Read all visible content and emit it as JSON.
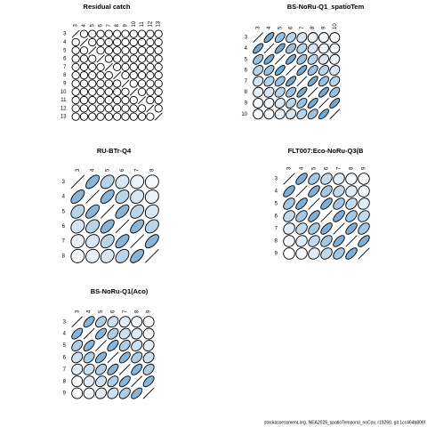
{
  "chart_data": [
    {
      "type": "correlation",
      "title": "Residual catch",
      "color": "#4f94c8",
      "labels": [
        "3",
        "4",
        "5",
        "6",
        "7",
        "8",
        "9",
        "10",
        "11",
        "12",
        "13"
      ],
      "matrix": [
        [
          1,
          0,
          0,
          0,
          0,
          0,
          0,
          0,
          0,
          0,
          0
        ],
        [
          0,
          1,
          0,
          0,
          0,
          0,
          0,
          0,
          0,
          0,
          0
        ],
        [
          0,
          0,
          1,
          0,
          0,
          0,
          0,
          0,
          0,
          0,
          0
        ],
        [
          0,
          0,
          0,
          1,
          0,
          0,
          0,
          0,
          0,
          0,
          0
        ],
        [
          0,
          0,
          0,
          0,
          1,
          0,
          0,
          0,
          0,
          0,
          0
        ],
        [
          0,
          0,
          0,
          0,
          0,
          1,
          0,
          0,
          0,
          0,
          0
        ],
        [
          0,
          0,
          0,
          0,
          0,
          0,
          1,
          0,
          0,
          0,
          0
        ],
        [
          0,
          0,
          0,
          0,
          0,
          0,
          0,
          1,
          0,
          0,
          0
        ],
        [
          0,
          0,
          0,
          0,
          0,
          0,
          0,
          0,
          1,
          0,
          0
        ],
        [
          0,
          0,
          0,
          0,
          0,
          0,
          0,
          0,
          0,
          1,
          0
        ],
        [
          0,
          0,
          0,
          0,
          0,
          0,
          0,
          0,
          0,
          0,
          1
        ]
      ]
    },
    {
      "type": "correlation",
      "title": "BS-NoRu-Q1_spatioTem",
      "color": "#4f94c8",
      "labels": [
        "3",
        "4",
        "5",
        "6",
        "7",
        "8",
        "9",
        "10"
      ],
      "matrix": [
        [
          1,
          0.7,
          0.5,
          0.35,
          0.2,
          0.1,
          0.05,
          0
        ],
        [
          0.7,
          1,
          0.7,
          0.5,
          0.35,
          0.2,
          0.1,
          0.05
        ],
        [
          0.5,
          0.7,
          1,
          0.7,
          0.5,
          0.35,
          0.2,
          0.1
        ],
        [
          0.35,
          0.5,
          0.7,
          1,
          0.7,
          0.5,
          0.35,
          0.2
        ],
        [
          0.2,
          0.35,
          0.5,
          0.7,
          1,
          0.7,
          0.5,
          0.35
        ],
        [
          0.1,
          0.2,
          0.35,
          0.5,
          0.7,
          1,
          0.7,
          0.5
        ],
        [
          0.05,
          0.1,
          0.2,
          0.35,
          0.5,
          0.7,
          1,
          0.7
        ],
        [
          0,
          0.05,
          0.1,
          0.2,
          0.35,
          0.5,
          0.7,
          1
        ]
      ]
    },
    {
      "type": "correlation",
      "title": "RU-BTr-Q4",
      "color": "#4f94c8",
      "labels": [
        "3",
        "4",
        "5",
        "6",
        "7",
        "8"
      ],
      "matrix": [
        [
          1,
          0.6,
          0.35,
          0.2,
          0.1,
          0.05
        ],
        [
          0.6,
          1,
          0.6,
          0.35,
          0.2,
          0.1
        ],
        [
          0.35,
          0.6,
          1,
          0.6,
          0.35,
          0.2
        ],
        [
          0.2,
          0.35,
          0.6,
          1,
          0.6,
          0.35
        ],
        [
          0.1,
          0.2,
          0.35,
          0.6,
          1,
          0.6
        ],
        [
          0.05,
          0.1,
          0.2,
          0.35,
          0.6,
          1
        ]
      ]
    },
    {
      "type": "correlation",
      "title": "FLT007:Eco-NoRu-Q3(B",
      "color": "#4f94c8",
      "labels": [
        "3",
        "4",
        "5",
        "6",
        "7",
        "8",
        "9"
      ],
      "matrix": [
        [
          1,
          0.65,
          0.45,
          0.3,
          0.15,
          0.05,
          0
        ],
        [
          0.65,
          1,
          0.65,
          0.45,
          0.3,
          0.15,
          0.05
        ],
        [
          0.45,
          0.65,
          1,
          0.65,
          0.45,
          0.3,
          0.15
        ],
        [
          0.3,
          0.45,
          0.65,
          1,
          0.65,
          0.45,
          0.3
        ],
        [
          0.15,
          0.3,
          0.45,
          0.65,
          1,
          0.65,
          0.45
        ],
        [
          0.05,
          0.15,
          0.3,
          0.45,
          0.65,
          1,
          0.65
        ],
        [
          0,
          0.05,
          0.15,
          0.3,
          0.45,
          0.65,
          1
        ]
      ]
    },
    {
      "type": "correlation",
      "title": "BS-NoRu-Q1(Aco)",
      "color": "#4f94c8",
      "labels": [
        "3",
        "4",
        "5",
        "6",
        "7",
        "8",
        "9"
      ],
      "matrix": [
        [
          1,
          0.6,
          0.4,
          0.25,
          0.15,
          0.05,
          0
        ],
        [
          0.6,
          1,
          0.6,
          0.4,
          0.25,
          0.15,
          0.05
        ],
        [
          0.4,
          0.6,
          1,
          0.6,
          0.4,
          0.25,
          0.15
        ],
        [
          0.25,
          0.4,
          0.6,
          1,
          0.6,
          0.4,
          0.25
        ],
        [
          0.15,
          0.25,
          0.4,
          0.6,
          1,
          0.6,
          0.4
        ],
        [
          0.05,
          0.15,
          0.25,
          0.4,
          0.6,
          1,
          0.6
        ],
        [
          0,
          0.05,
          0.15,
          0.25,
          0.4,
          0.6,
          1
        ]
      ]
    }
  ],
  "footer": "stockassessment.org, NEA2025_spatioTemporal_noCov, r19260, git 1cc464b806f"
}
